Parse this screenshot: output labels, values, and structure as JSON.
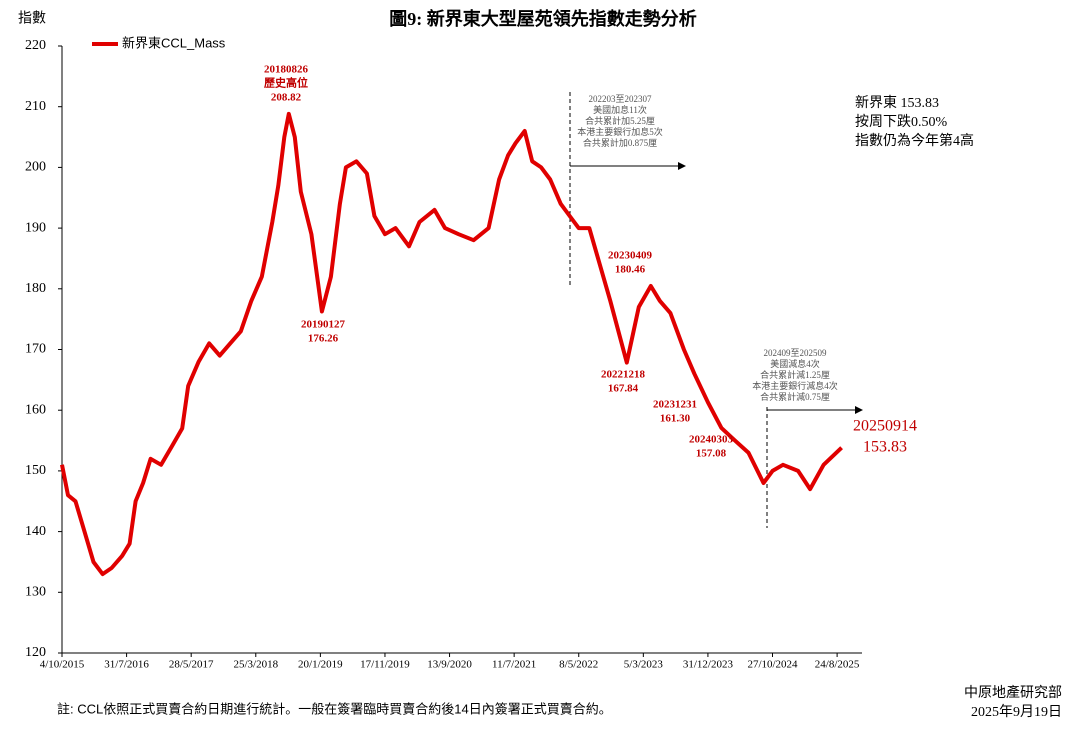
{
  "chart_data": {
    "type": "line",
    "title": "圖9: 新界東大型屋苑領先指數走勢分析",
    "y_label": "指數",
    "x": [
      "2015-10-04",
      "2015-11-01",
      "2015-12-06",
      "2016-01-17",
      "2016-02-28",
      "2016-04-10",
      "2016-05-22",
      "2016-07-10",
      "2016-08-14",
      "2016-09-11",
      "2016-10-16",
      "2016-11-20",
      "2017-01-08",
      "2017-02-26",
      "2017-04-16",
      "2017-05-14",
      "2017-07-02",
      "2017-08-20",
      "2017-10-08",
      "2017-11-26",
      "2018-01-14",
      "2018-03-04",
      "2018-04-22",
      "2018-06-10",
      "2018-07-08",
      "2018-08-05",
      "2018-08-26",
      "2018-09-23",
      "2018-10-21",
      "2018-12-09",
      "2019-01-27",
      "2019-03-10",
      "2019-04-21",
      "2019-05-19",
      "2019-07-07",
      "2019-08-25",
      "2019-09-29",
      "2019-11-17",
      "2020-01-05",
      "2020-03-08",
      "2020-04-26",
      "2020-07-05",
      "2020-08-23",
      "2020-10-25",
      "2021-01-03",
      "2021-03-14",
      "2021-05-02",
      "2021-06-13",
      "2021-07-18",
      "2021-08-29",
      "2021-10-03",
      "2021-11-14",
      "2021-12-26",
      "2022-02-13",
      "2022-03-27",
      "2022-05-08",
      "2022-06-26",
      "2022-08-14",
      "2022-10-02",
      "2022-12-18",
      "2023-02-12",
      "2023-04-09",
      "2023-05-21",
      "2023-07-09",
      "2023-09-10",
      "2023-10-29",
      "2023-12-31",
      "2024-03-03",
      "2024-05-05",
      "2024-07-07",
      "2024-09-15",
      "2024-10-27",
      "2024-12-15",
      "2025-02-23",
      "2025-04-20",
      "2025-06-22",
      "2025-09-14"
    ],
    "series": [
      {
        "name": "新界東CCL_Mass",
        "color": "#e00000",
        "values": [
          151,
          146,
          145,
          140,
          135,
          133,
          134,
          136,
          138,
          145,
          148,
          152,
          151,
          154,
          157,
          164,
          168,
          171,
          169,
          171,
          173,
          178,
          182,
          191,
          197,
          205,
          208.82,
          205,
          196,
          189,
          176.26,
          182,
          194,
          200,
          201,
          199,
          192,
          189,
          190,
          187,
          191,
          193,
          190,
          189,
          188,
          190,
          198,
          202,
          204,
          206,
          201,
          200,
          198,
          194,
          192,
          190,
          190,
          184,
          178,
          167.84,
          177,
          180.46,
          178,
          176,
          170,
          166,
          161.3,
          157.08,
          155,
          153,
          148,
          150,
          151,
          150,
          147,
          151,
          153.83
        ]
      }
    ],
    "xlim": [
      "2015-10-04",
      "2025-12-18"
    ],
    "xticks": [
      {
        "value": "2015-10-04",
        "label": "4/10/2015"
      },
      {
        "value": "2016-07-31",
        "label": "31/7/2016"
      },
      {
        "value": "2017-05-28",
        "label": "28/5/2017"
      },
      {
        "value": "2018-03-25",
        "label": "25/3/2018"
      },
      {
        "value": "2019-01-20",
        "label": "20/1/2019"
      },
      {
        "value": "2019-11-17",
        "label": "17/11/2019"
      },
      {
        "value": "2020-09-13",
        "label": "13/9/2020"
      },
      {
        "value": "2021-07-11",
        "label": "11/7/2021"
      },
      {
        "value": "2022-05-08",
        "label": "8/5/2022"
      },
      {
        "value": "2023-03-05",
        "label": "5/3/2023"
      },
      {
        "value": "2023-12-31",
        "label": "31/12/2023"
      },
      {
        "value": "2024-10-27",
        "label": "27/10/2024"
      },
      {
        "value": "2025-08-24",
        "label": "24/8/2025"
      }
    ],
    "ylim": [
      120,
      220
    ],
    "yticks": [
      120,
      130,
      140,
      150,
      160,
      170,
      180,
      190,
      200,
      210,
      220
    ],
    "grid": false,
    "legend": "top-left",
    "annotations": [
      {
        "text": [
          "20180826",
          "歷史高位",
          "208.82"
        ]
      },
      {
        "text": [
          "20190127",
          "176.26"
        ]
      },
      {
        "text": [
          "20230409",
          "180.46"
        ]
      },
      {
        "text": [
          "20221218",
          "167.84"
        ]
      },
      {
        "text": [
          "20231231",
          "161.30"
        ]
      },
      {
        "text": [
          "20240303",
          "157.08"
        ]
      }
    ],
    "periods": [
      {
        "text": [
          "202203至202307",
          "美國加息11次",
          "合共累計加5.25厘",
          "本港主要銀行加息5次",
          "合共累計加0.875厘"
        ]
      },
      {
        "text": [
          "202409至202509",
          "美國減息4次",
          "合共累計減1.25厘",
          "本港主要銀行減息4次",
          "合共累計減0.75厘"
        ]
      }
    ],
    "latest_label": [
      "20250914",
      "153.83"
    ],
    "summary": [
      "新界東 153.83",
      "按周下跌0.50%",
      "指數仍為今年第4高"
    ],
    "footnote": "註: CCL依照正式買賣合約日期進行統計。一般在簽署臨時買賣合約後14日內簽署正式買賣合約。",
    "source": [
      "中原地產研究部",
      "2025年9月19日"
    ]
  }
}
